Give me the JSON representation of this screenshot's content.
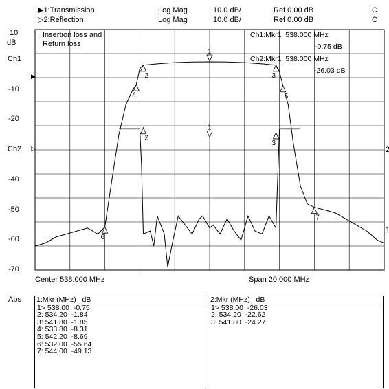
{
  "header": {
    "trace1": {
      "marker": "▶",
      "label": "1:Transmission",
      "format": "Log Mag",
      "scale": "10.0 dB/",
      "ref": "Ref  0.00 dB",
      "flag": "C"
    },
    "trace2": {
      "marker": "▷",
      "label": "2:Reflection",
      "format": "Log Mag",
      "scale": "10.0 dB/",
      "ref": "Ref  0.00 dB",
      "flag": "C"
    }
  },
  "plot": {
    "title_line1": "Insertion loss and",
    "title_line2": "Return loss",
    "y_unit": "dB",
    "y_ticks": [
      "10",
      "Ch1",
      "-10",
      "-20",
      "Ch2",
      "-40",
      "-50",
      "-60",
      "-70",
      "Abs"
    ],
    "ch1_marker_readout": {
      "label": "Ch1:Mkr1",
      "freq": "538.000 MHz",
      "value": "-0.75 dB"
    },
    "ch2_marker_readout": {
      "label": "Ch2:Mkr1",
      "freq": "538.000 MHz",
      "value": "-26.03 dB"
    },
    "right_ref_ch2": "2",
    "right_ref_ch1": "1",
    "center_label": "Center 538.000 MHz",
    "span_label": "Span 20.000 MHz"
  },
  "marker_table_ch1": {
    "header": "1:Mkr (MHz)   dB",
    "rows": [
      "1> 538.00  -0.75",
      "2: 534.20  -1.84",
      "3: 541.80  -1.85",
      "4: 533.80  -8.31",
      "5: 542.20  -8.69",
      "6: 532.00  -55.64",
      "7: 544.00  -49.13"
    ]
  },
  "marker_table_ch2": {
    "header": "2:Mkr (MHz)   dB",
    "rows": [
      "1> 538.00  -26.03",
      "2: 534.20  -22.62",
      "3: 541.80  -24.27"
    ]
  },
  "chart_data": {
    "type": "line",
    "title": "Insertion loss and Return loss",
    "xlabel": "",
    "ylabel": "dB",
    "x_unit": "MHz",
    "xlim": [
      528,
      548
    ],
    "ylim": [
      -70,
      10
    ],
    "grid": true,
    "series": [
      {
        "name": "1:Transmission",
        "x": [
          528.0,
          528.6,
          529.2,
          529.8,
          530.4,
          531.0,
          531.6,
          532.0,
          532.4,
          532.8,
          533.2,
          533.6,
          533.8,
          534.0,
          534.2,
          535.0,
          536.0,
          537.0,
          538.0,
          539.0,
          540.0,
          541.0,
          541.8,
          542.0,
          542.2,
          542.5,
          542.8,
          543.2,
          543.6,
          544.0,
          544.6,
          545.2,
          545.8,
          546.4,
          547.0,
          547.6,
          548.0
        ],
        "y": [
          -62,
          -61,
          -59,
          -58,
          -57,
          -56,
          -58,
          -55.64,
          -40,
          -25,
          -15,
          -10,
          -8.31,
          -3,
          -1.84,
          -1.4,
          -1.0,
          -0.8,
          -0.75,
          -0.8,
          -1.0,
          -1.4,
          -1.85,
          -4,
          -8.69,
          -15,
          -28,
          -42,
          -48,
          -49.13,
          -50,
          -51,
          -53,
          -55,
          -57,
          -60,
          -61
        ]
      },
      {
        "name": "2:Reflection",
        "x": [
          532.8,
          534.0,
          534.1,
          534.2,
          534.6,
          534.8,
          535.0,
          535.4,
          535.6,
          535.9,
          536.2,
          536.6,
          537.0,
          537.4,
          537.6,
          537.8,
          538.0,
          538.2,
          538.6,
          539.0,
          539.4,
          539.8,
          540.2,
          540.6,
          541.0,
          541.4,
          541.8,
          542.0,
          543.2
        ],
        "y": [
          -23,
          -23,
          -35,
          -58,
          -57,
          -62,
          -52,
          -58,
          -69,
          -60,
          -52,
          -55,
          -58,
          -53,
          -52,
          -54,
          -56,
          -55,
          -58,
          -53,
          -57,
          -60,
          -52,
          -57,
          -58,
          -52,
          -56,
          -23,
          -23
        ]
      }
    ],
    "markers": [
      {
        "trace": "1:Transmission",
        "id": "1",
        "x": 538.0,
        "y": -0.75
      },
      {
        "trace": "1:Transmission",
        "id": "2",
        "x": 534.2,
        "y": -1.84
      },
      {
        "trace": "1:Transmission",
        "id": "3",
        "x": 541.8,
        "y": -1.85
      },
      {
        "trace": "1:Transmission",
        "id": "4",
        "x": 533.8,
        "y": -8.31
      },
      {
        "trace": "1:Transmission",
        "id": "5",
        "x": 542.2,
        "y": -8.69
      },
      {
        "trace": "1:Transmission",
        "id": "6",
        "x": 532.0,
        "y": -55.64
      },
      {
        "trace": "1:Transmission",
        "id": "7",
        "x": 544.0,
        "y": -49.13
      },
      {
        "trace": "2:Reflection",
        "id": "1",
        "x": 538.0,
        "y": -26.03
      },
      {
        "trace": "2:Reflection",
        "id": "2",
        "x": 534.2,
        "y": -22.62
      },
      {
        "trace": "2:Reflection",
        "id": "3",
        "x": 541.8,
        "y": -24.27
      }
    ]
  }
}
